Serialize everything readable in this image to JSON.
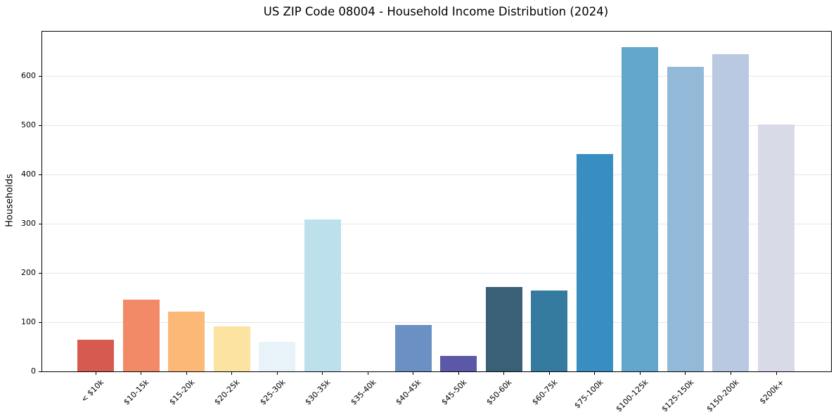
{
  "title": "US ZIP Code 08004 - Household Income Distribution (2024)",
  "chart_data": {
    "type": "bar",
    "title": "US ZIP Code 08004 - Household Income Distribution (2024)",
    "xlabel": "",
    "ylabel": "Households",
    "ylim": [
      0,
      690
    ],
    "yticks": [
      0,
      100,
      200,
      300,
      400,
      500,
      600
    ],
    "grid": "horizontal-only",
    "grid_color": "#e6e6e6",
    "spine_color": "#000000",
    "text_color": "#000000",
    "background_color": "#ffffff",
    "legend": "none",
    "categories": [
      "< $10k",
      "$10-15k",
      "$15-20k",
      "$20-25k",
      "$25-30k",
      "$30-35k",
      "$35-40k",
      "$40-45k",
      "$45-50k",
      "$50-60k",
      "$60-75k",
      "$75-100k",
      "$100-125k",
      "$125-150k",
      "$150-200k",
      "$200k+"
    ],
    "values": [
      64,
      146,
      122,
      92,
      60,
      308,
      0,
      95,
      31,
      172,
      165,
      441,
      658,
      619,
      644,
      501
    ],
    "bar_colors": [
      "#d65a50",
      "#f28a68",
      "#fbb877",
      "#fce3a2",
      "#e8f2f9",
      "#bce0ec",
      "#8fc2dc",
      "#6b90c3",
      "#5c58a8",
      "#3a6077",
      "#357a9f",
      "#388dc1",
      "#62a6cb",
      "#93b9d8",
      "#b9c9e1",
      "#d9dae8"
    ]
  }
}
